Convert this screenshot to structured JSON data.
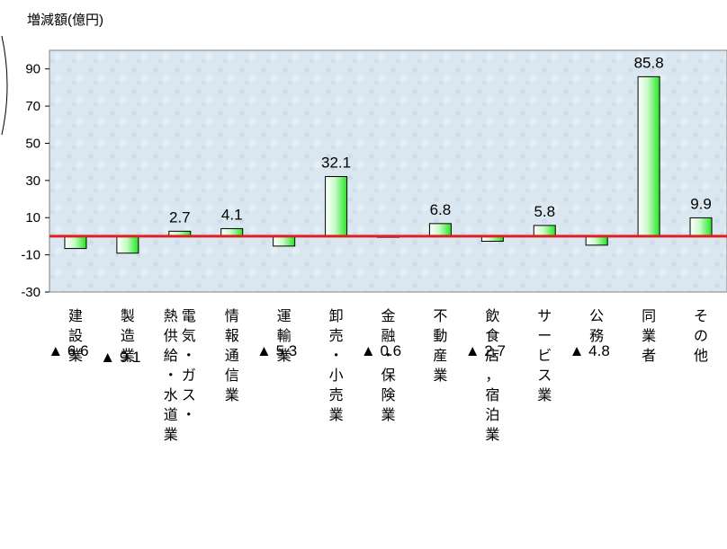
{
  "chart_data": {
    "type": "bar",
    "ylabel": "増減額(億円)",
    "ylim": [
      -30,
      100
    ],
    "yticks": [
      90,
      70,
      50,
      30,
      10,
      -10,
      -30
    ],
    "grid": false,
    "legend": "none",
    "categories": [
      "建設業",
      "製造業",
      "電気・ガス・熱供給・水道業",
      "情報通信業",
      "運輸業",
      "卸売・小売業",
      "金融・保険業",
      "不動産業",
      "飲食店,宿泊業",
      "サービス業",
      "公務",
      "同業者",
      "その他"
    ],
    "values": [
      -6.6,
      -9.1,
      2.7,
      4.1,
      -5.3,
      32.1,
      -0.6,
      6.8,
      -2.7,
      5.8,
      -4.8,
      85.8,
      9.9
    ],
    "value_labels": [
      "▲ 6.6",
      "▲ 9.1",
      "2.7",
      "4.1",
      "▲ 5.3",
      "32.1",
      "▲ 0.6",
      "6.8",
      "▲ 2.7",
      "5.8",
      "▲ 4.8",
      "85.8",
      "9.9"
    ],
    "category_label_columns": [
      [
        [
          "建",
          "設",
          "業"
        ]
      ],
      [
        [
          "製",
          "造",
          "業"
        ]
      ],
      [
        [
          "熱",
          "供",
          "給",
          "・",
          "水",
          "道",
          "業"
        ],
        [
          "電",
          "気",
          "・",
          "ガ",
          "ス",
          "・"
        ]
      ],
      [
        [
          "情",
          "報",
          "通",
          "信",
          "業"
        ]
      ],
      [
        [
          "運",
          "輸",
          "業"
        ]
      ],
      [
        [
          "卸",
          "売",
          "・",
          "小",
          "売",
          "業"
        ]
      ],
      [
        [
          "金",
          "融",
          "・",
          "保",
          "険",
          "業"
        ]
      ],
      [
        [
          "不",
          "動",
          "産",
          "業"
        ]
      ],
      [
        [
          "飲",
          "食",
          "店",
          "，",
          "宿",
          "泊",
          "業"
        ]
      ],
      [
        [
          "サ",
          "ー",
          "ビ",
          "ス",
          "業"
        ]
      ],
      [
        [
          "公",
          "務"
        ]
      ],
      [
        [
          "同",
          "業",
          "者"
        ]
      ],
      [
        [
          "そ",
          "の",
          "他"
        ]
      ]
    ],
    "colors": {
      "plot_background": "#dbe7f0",
      "bar_fill_light": "#ffffff",
      "bar_fill_dark": "#22e622",
      "baseline": "#e02020"
    }
  }
}
